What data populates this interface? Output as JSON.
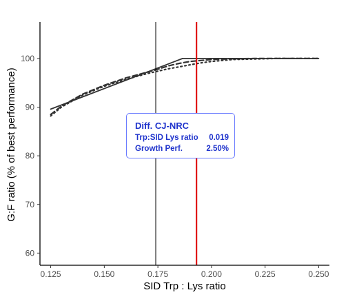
{
  "chart_data": {
    "type": "line",
    "xlabel": "SID Trp : Lys ratio",
    "ylabel": "G:F ratio (% of best performance)",
    "xlim": [
      0.12,
      0.255
    ],
    "ylim": [
      57.5,
      107.5
    ],
    "x_ticks": [
      "0.125",
      "0.150",
      "0.175",
      "0.200",
      "0.225",
      "0.250"
    ],
    "y_ticks": [
      "60",
      "70",
      "80",
      "90",
      "100"
    ],
    "x_tick_values": [
      0.125,
      0.15,
      0.175,
      0.2,
      0.225,
      0.25
    ],
    "y_tick_values": [
      60,
      70,
      80,
      90,
      100
    ],
    "grid": false,
    "series": [
      {
        "style": "solid",
        "color": "#333333",
        "x": [
          0.125,
          0.1865,
          0.25
        ],
        "y": [
          89.6,
          100.0,
          100.0
        ]
      },
      {
        "style": "dashed",
        "color": "#333333",
        "x": [
          0.125,
          0.13,
          0.14,
          0.15,
          0.16,
          0.17,
          0.175,
          0.18,
          0.185,
          0.19,
          0.195,
          0.2,
          0.21,
          0.22,
          0.25
        ],
        "y": [
          88.5,
          90.2,
          92.7,
          94.5,
          96.0,
          97.2,
          97.8,
          98.5,
          99.0,
          99.4,
          99.6,
          99.8,
          99.95,
          100.0,
          100.0
        ]
      },
      {
        "style": "dotted",
        "color": "#333333",
        "x": [
          0.125,
          0.13,
          0.14,
          0.15,
          0.16,
          0.17,
          0.175,
          0.18,
          0.185,
          0.19,
          0.195,
          0.2,
          0.205,
          0.21,
          0.22,
          0.23,
          0.25
        ],
        "y": [
          88.2,
          90.0,
          92.5,
          94.3,
          95.7,
          96.9,
          97.4,
          97.9,
          98.3,
          98.7,
          99.1,
          99.4,
          99.6,
          99.8,
          99.9,
          100.0,
          100.0
        ]
      }
    ],
    "vlines": [
      {
        "x": 0.174,
        "color": "#000000",
        "width": 1
      },
      {
        "x": 0.193,
        "color": "#e00000",
        "width": 2.2
      }
    ],
    "annotation": {
      "title": "Diff. CJ-NRC",
      "rows": [
        {
          "label": "Trp:SID Lys ratio",
          "value": "0.019"
        },
        {
          "label": "Growth Perf.",
          "value": "2.50%"
        }
      ],
      "text_color": "#1f33cc",
      "border_color": "#6b7cff"
    }
  }
}
